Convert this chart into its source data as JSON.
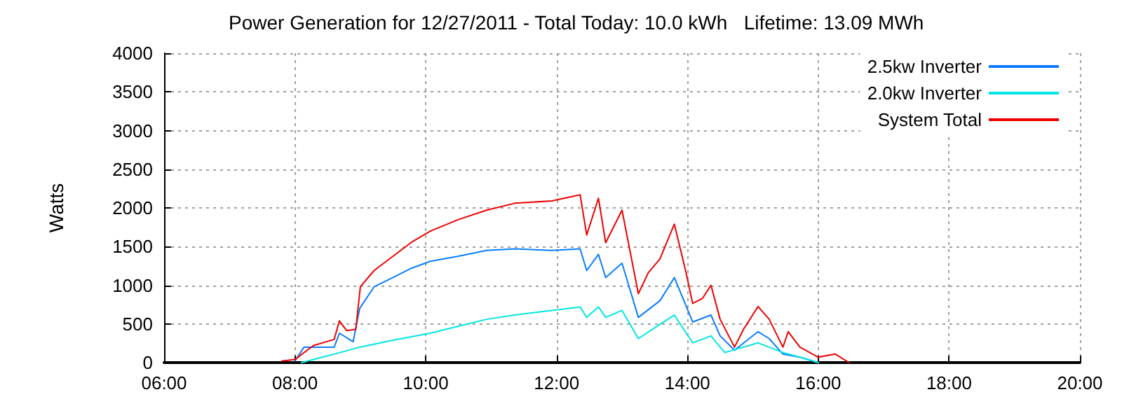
{
  "chart_data": {
    "type": "line",
    "title": "Power Generation for 12/27/2011 - Total Today: 10.0 kWh   Lifetime: 13.09 MWh",
    "ylabel": "Watts",
    "xlim": [
      6,
      20
    ],
    "xticks": [
      {
        "value": 6,
        "label": "06:00"
      },
      {
        "value": 8,
        "label": "08:00"
      },
      {
        "value": 10,
        "label": "10:00"
      },
      {
        "value": 12,
        "label": "12:00"
      },
      {
        "value": 14,
        "label": "14:00"
      },
      {
        "value": 16,
        "label": "16:00"
      },
      {
        "value": 18,
        "label": "18:00"
      },
      {
        "value": 20,
        "label": "20:00"
      }
    ],
    "ylim": [
      0,
      4000
    ],
    "yticks": [
      0,
      500,
      1000,
      1500,
      2000,
      2500,
      3000,
      3500,
      4000
    ],
    "grid": true,
    "legend": "top right",
    "marker": "none",
    "line_style": "solid",
    "series": [
      {
        "name": "2.5kw Inverter",
        "color": "#0a7cff",
        "x": [
          8.0,
          8.14,
          8.6,
          8.68,
          8.89,
          8.99,
          9.21,
          9.5,
          9.78,
          10.07,
          10.5,
          10.93,
          11.36,
          11.93,
          12.36,
          12.46,
          12.64,
          12.75,
          13.0,
          13.25,
          13.58,
          13.8,
          14.08,
          14.36,
          14.5,
          14.72,
          15.08,
          15.25,
          15.46,
          15.72,
          16.0
        ],
        "values": [
          20,
          200,
          200,
          380,
          270,
          700,
          980,
          1100,
          1220,
          1310,
          1375,
          1450,
          1470,
          1450,
          1470,
          1190,
          1400,
          1100,
          1285,
          585,
          800,
          1100,
          525,
          615,
          345,
          160,
          400,
          310,
          110,
          70,
          0
        ]
      },
      {
        "name": "2.0kw Inverter",
        "color": "#00e5e5",
        "x": [
          8.1,
          8.6,
          8.99,
          9.5,
          10.07,
          10.5,
          10.93,
          11.36,
          11.93,
          12.36,
          12.46,
          12.64,
          12.75,
          13.0,
          13.25,
          13.58,
          13.8,
          14.08,
          14.36,
          14.57,
          15.08,
          15.46,
          15.72,
          16.0
        ],
        "values": [
          0,
          110,
          200,
          290,
          380,
          470,
          560,
          615,
          675,
          720,
          585,
          720,
          585,
          675,
          310,
          495,
          615,
          255,
          345,
          130,
          255,
          130,
          70,
          0
        ]
      },
      {
        "name": "System Total",
        "color": "#ee0000",
        "x": [
          7.8,
          8.0,
          8.28,
          8.6,
          8.68,
          8.79,
          8.93,
          9.0,
          9.21,
          9.5,
          9.78,
          10.07,
          10.5,
          10.93,
          11.36,
          11.93,
          12.36,
          12.46,
          12.64,
          12.75,
          13.0,
          13.25,
          13.4,
          13.58,
          13.8,
          13.98,
          14.08,
          14.23,
          14.36,
          14.5,
          14.72,
          14.86,
          15.08,
          15.25,
          15.46,
          15.54,
          15.72,
          16.0,
          16.26,
          16.47
        ],
        "values": [
          20,
          40,
          220,
          300,
          540,
          415,
          430,
          980,
          1190,
          1375,
          1555,
          1700,
          1850,
          1970,
          2060,
          2090,
          2170,
          1650,
          2125,
          1550,
          1970,
          890,
          1160,
          1340,
          1790,
          1160,
          765,
          830,
          1000,
          560,
          200,
          435,
          725,
          560,
          200,
          400,
          200,
          70,
          110,
          0
        ]
      }
    ]
  }
}
